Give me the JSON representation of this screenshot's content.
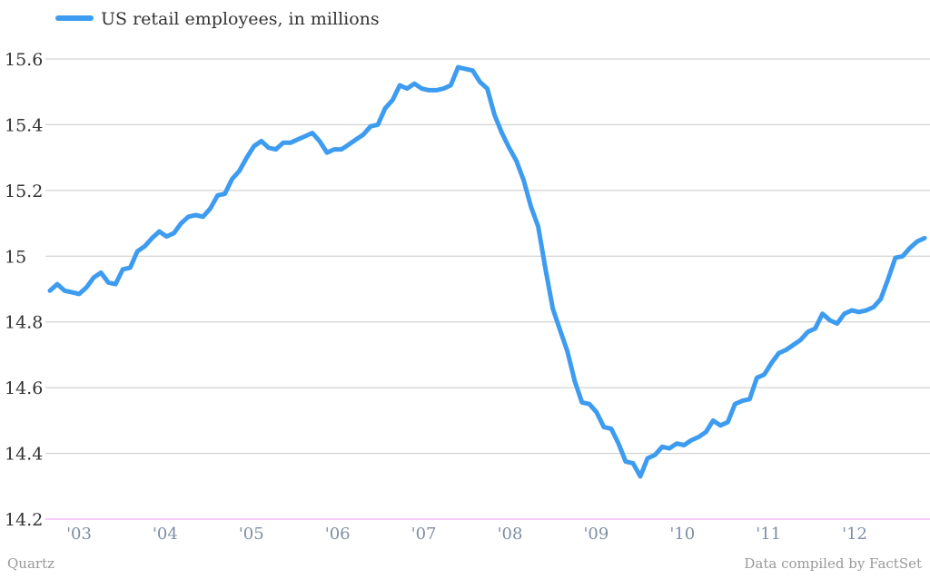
{
  "chart_data": {
    "type": "line",
    "legend": "US retail employees, in millions",
    "legend_position": "top-left",
    "credit": "Quartz",
    "source": "Data compiled by FactSet",
    "grid": true,
    "ylim": [
      14.2,
      15.6
    ],
    "y_ticks": [
      "15.6",
      "15.4",
      "15.2",
      "15",
      "14.8",
      "14.6",
      "14.4",
      "14.2"
    ],
    "x_ticks": [
      "'03",
      "'04",
      "'05",
      "'06",
      "'07",
      "'08",
      "'09",
      "'10",
      "'11",
      "'12"
    ],
    "colors": {
      "series": "#3d9cf0",
      "grid": "#c8c8c8",
      "baseline": "#f09af0",
      "tick_label": "#7f8fa6"
    },
    "series": [
      {
        "name": "US retail employees, in millions",
        "x": [
          2002.75,
          2002.833,
          2002.917,
          2003.0,
          2003.083,
          2003.167,
          2003.25,
          2003.333,
          2003.417,
          2003.5,
          2003.583,
          2003.667,
          2003.75,
          2003.833,
          2003.917,
          2004.0,
          2004.083,
          2004.167,
          2004.25,
          2004.333,
          2004.417,
          2004.5,
          2004.583,
          2004.667,
          2004.75,
          2004.833,
          2004.917,
          2005.0,
          2005.083,
          2005.167,
          2005.25,
          2005.333,
          2005.417,
          2005.5,
          2005.583,
          2005.667,
          2005.75,
          2005.833,
          2005.917,
          2006.0,
          2006.083,
          2006.167,
          2006.25,
          2006.333,
          2006.417,
          2006.5,
          2006.583,
          2006.667,
          2006.75,
          2006.833,
          2006.917,
          2007.0,
          2007.083,
          2007.167,
          2007.25,
          2007.333,
          2007.417,
          2007.5,
          2007.583,
          2007.667,
          2007.75,
          2007.833,
          2007.917,
          2008.0,
          2008.083,
          2008.167,
          2008.25,
          2008.333,
          2008.417,
          2008.5,
          2008.583,
          2008.667,
          2008.75,
          2008.833,
          2008.917,
          2009.0,
          2009.083,
          2009.167,
          2009.25,
          2009.333,
          2009.417,
          2009.5,
          2009.583,
          2009.667,
          2009.75,
          2009.833,
          2009.917,
          2010.0,
          2010.083,
          2010.167,
          2010.25,
          2010.333,
          2010.417,
          2010.5,
          2010.583,
          2010.667,
          2010.75,
          2010.833,
          2010.917,
          2011.0,
          2011.083,
          2011.167,
          2011.25,
          2011.333,
          2011.417,
          2011.5,
          2011.583,
          2011.667,
          2011.75,
          2011.833,
          2011.917,
          2012.0,
          2012.083,
          2012.167,
          2012.25,
          2012.333,
          2012.417,
          2012.5,
          2012.583,
          2012.667,
          2012.75
        ],
        "values": [
          14.895,
          14.915,
          14.895,
          14.89,
          14.885,
          14.905,
          14.935,
          14.95,
          14.92,
          14.915,
          14.96,
          14.965,
          15.015,
          15.03,
          15.055,
          15.075,
          15.06,
          15.07,
          15.1,
          15.12,
          15.125,
          15.12,
          15.145,
          15.185,
          15.19,
          15.235,
          15.26,
          15.3,
          15.335,
          15.35,
          15.33,
          15.325,
          15.345,
          15.345,
          15.355,
          15.365,
          15.375,
          15.35,
          15.315,
          15.325,
          15.325,
          15.34,
          15.355,
          15.37,
          15.395,
          15.4,
          15.45,
          15.475,
          15.52,
          15.51,
          15.525,
          15.51,
          15.505,
          15.505,
          15.51,
          15.52,
          15.575,
          15.57,
          15.565,
          15.53,
          15.51,
          15.43,
          15.375,
          15.33,
          15.29,
          15.23,
          15.15,
          15.09,
          14.96,
          14.84,
          14.775,
          14.71,
          14.62,
          14.555,
          14.55,
          14.525,
          14.48,
          14.475,
          14.43,
          14.375,
          14.37,
          14.33,
          14.385,
          14.395,
          14.42,
          14.415,
          14.43,
          14.425,
          14.44,
          14.45,
          14.465,
          14.5,
          14.485,
          14.495,
          14.55,
          14.56,
          14.565,
          14.63,
          14.64,
          14.675,
          14.705,
          14.715,
          14.73,
          14.745,
          14.77,
          14.78,
          14.825,
          14.805,
          14.795,
          14.825,
          14.835,
          14.83,
          14.835,
          14.845,
          14.87,
          14.93,
          14.995,
          15.0,
          15.025,
          15.045,
          15.055
        ]
      }
    ]
  }
}
